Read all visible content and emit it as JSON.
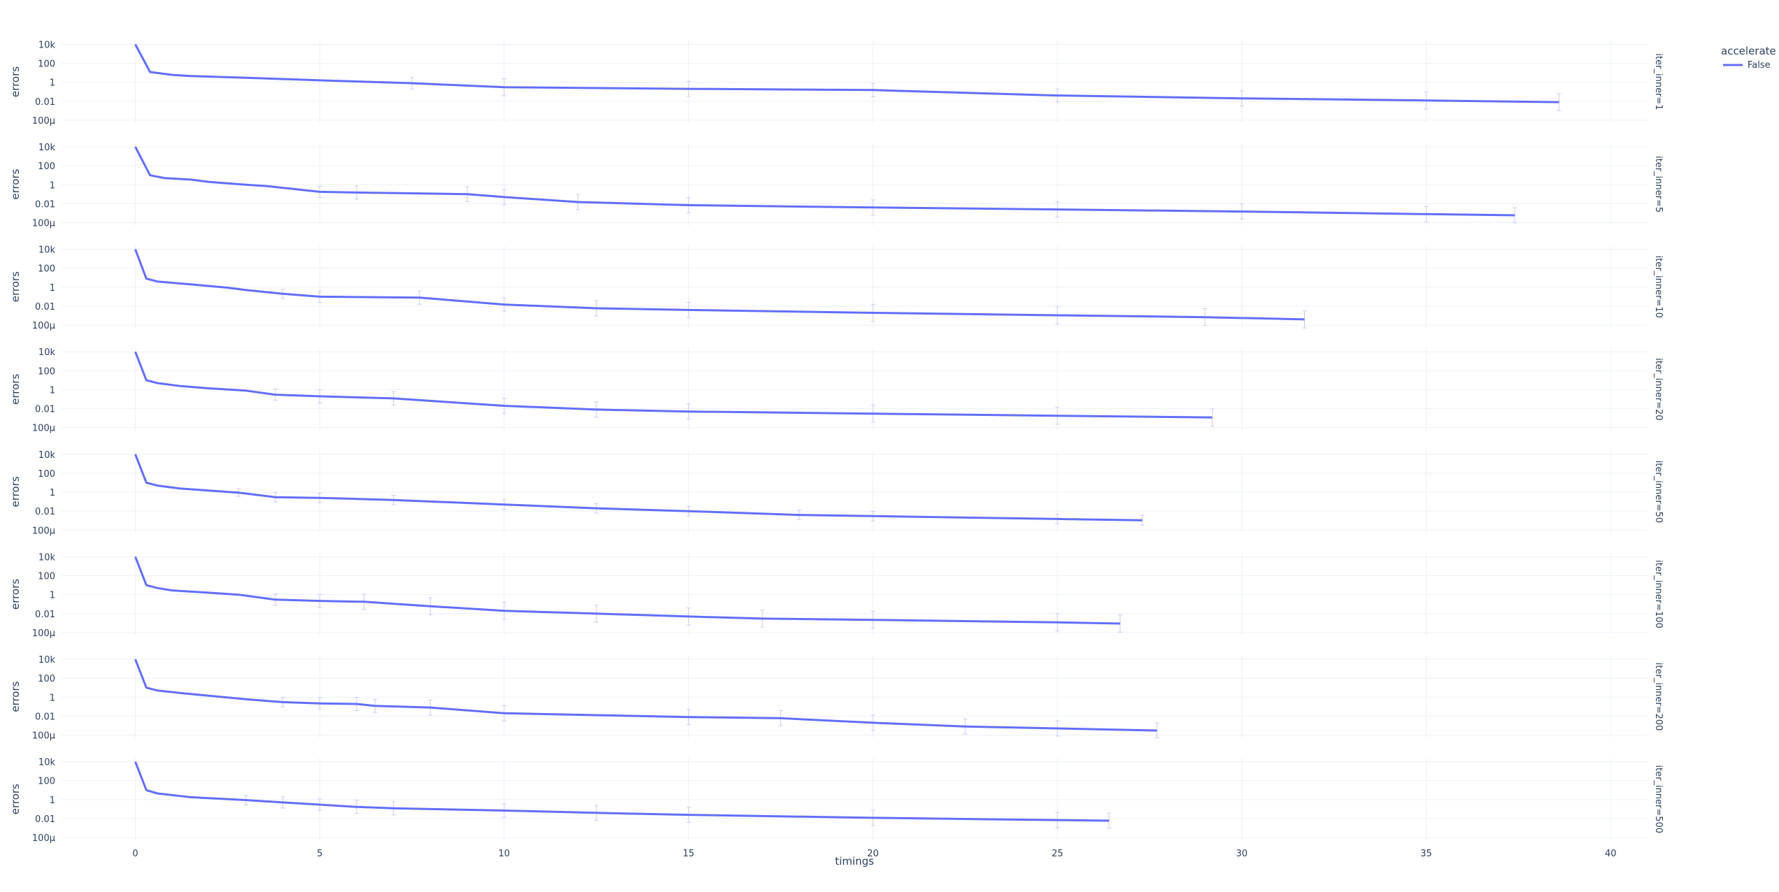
{
  "colors": {
    "line": "#636efa",
    "error_bar": "#c9ccf4",
    "grid": "#ebf0f8",
    "text": "#2a3f5f"
  },
  "chart_data": {
    "type": "line",
    "xlabel": "timings",
    "ylabel": "errors",
    "x_ticks": [
      "0",
      "5",
      "10",
      "15",
      "20",
      "25",
      "30",
      "35",
      "40"
    ],
    "x_tick_values": [
      0,
      5,
      10,
      15,
      20,
      25,
      30,
      35,
      40
    ],
    "xlim": [
      -2,
      41
    ],
    "y_scale": "log",
    "ylim": [
      5e-05,
      25000
    ],
    "y_ticks": [
      "10k",
      "100",
      "1",
      "0.01",
      "100μ"
    ],
    "y_tick_values": [
      10000,
      100,
      1,
      0.01,
      0.0001
    ],
    "grid": true,
    "legend": {
      "title": "accelerate",
      "placement": "top-right",
      "entries": [
        "False"
      ]
    },
    "facets": [
      {
        "label": "iter_inner=1",
        "series": [
          {
            "name": "False",
            "x": [
              0,
              0.4,
              1,
              1.5,
              3,
              5,
              7.5,
              10,
              15,
              20,
              25,
              30,
              35,
              38.6
            ],
            "y": [
              10000,
              12,
              6,
              4.5,
              3,
              1.6,
              0.8,
              0.3,
              0.2,
              0.15,
              0.04,
              0.02,
              0.012,
              0.008
            ],
            "err": [
              0,
              0,
              0,
              0,
              0,
              0,
              0.6,
              0.9,
              0.8,
              0.7,
              0.7,
              0.8,
              0.9,
              0.9
            ]
          }
        ]
      },
      {
        "label": "iter_inner=5",
        "series": [
          {
            "name": "False",
            "x": [
              0,
              0.4,
              0.8,
              1.5,
              2,
              3,
              3.6,
              5,
              6,
              9,
              10,
              12,
              15,
              20,
              25,
              30,
              35,
              37.4
            ],
            "y": [
              10000,
              10,
              5,
              3.5,
              2,
              1,
              0.7,
              0.18,
              0.15,
              0.1,
              0.05,
              0.015,
              0.007,
              0.004,
              0.0025,
              0.0015,
              0.0008,
              0.0006
            ],
            "err": [
              0,
              0,
              0,
              0,
              0,
              0,
              0,
              0.6,
              0.7,
              0.8,
              0.8,
              0.8,
              0.8,
              0.8,
              0.8,
              0.8,
              0.8,
              0.8
            ]
          }
        ]
      },
      {
        "label": "iter_inner=10",
        "series": [
          {
            "name": "False",
            "x": [
              0,
              0.3,
              0.6,
              1.5,
              2.5,
              3,
              4,
              5,
              7.7,
              10,
              12.5,
              15,
              20,
              25,
              29,
              31.7
            ],
            "y": [
              10000,
              8,
              4,
              2,
              0.9,
              0.5,
              0.2,
              0.1,
              0.08,
              0.015,
              0.006,
              0.004,
              0.002,
              0.0011,
              0.0007,
              0.0004
            ],
            "err": [
              0,
              0,
              0,
              0,
              0,
              0,
              0.5,
              0.6,
              0.7,
              0.7,
              0.8,
              0.8,
              0.9,
              0.9,
              0.9,
              0.9
            ]
          }
        ]
      },
      {
        "label": "iter_inner=20",
        "series": [
          {
            "name": "False",
            "x": [
              0,
              0.3,
              0.6,
              1.2,
              2,
              3,
              3.8,
              5,
              7,
              10,
              12.5,
              15,
              20,
              25,
              29.2
            ],
            "y": [
              10000,
              10,
              5,
              2.5,
              1.4,
              0.8,
              0.3,
              0.2,
              0.12,
              0.02,
              0.008,
              0.005,
              0.003,
              0.0018,
              0.0012
            ],
            "err": [
              0,
              0,
              0,
              0,
              0,
              0,
              0.6,
              0.7,
              0.7,
              0.8,
              0.8,
              0.8,
              0.9,
              0.9,
              0.9
            ]
          }
        ]
      },
      {
        "label": "iter_inner=50",
        "series": [
          {
            "name": "False",
            "x": [
              0,
              0.3,
              0.6,
              1.2,
              2,
              2.8,
              3.8,
              5,
              7,
              10,
              12.5,
              15,
              18,
              20,
              25,
              27.3
            ],
            "y": [
              10000,
              10,
              5,
              2.5,
              1.5,
              0.9,
              0.3,
              0.25,
              0.15,
              0.05,
              0.02,
              0.01,
              0.004,
              0.003,
              0.0015,
              0.0011
            ],
            "err": [
              0,
              0,
              0,
              0,
              0,
              0.4,
              0.5,
              0.5,
              0.5,
              0.5,
              0.5,
              0.5,
              0.5,
              0.5,
              0.5,
              0.5
            ]
          }
        ]
      },
      {
        "label": "iter_inner=100",
        "series": [
          {
            "name": "False",
            "x": [
              0,
              0.3,
              0.6,
              1,
              2,
              2.8,
              3.8,
              5,
              6.2,
              8,
              10,
              12.5,
              15,
              17,
              20,
              25,
              26.7
            ],
            "y": [
              10000,
              10,
              5,
              2.8,
              1.6,
              1,
              0.3,
              0.22,
              0.18,
              0.06,
              0.02,
              0.01,
              0.005,
              0.003,
              0.0022,
              0.0012,
              0.0009
            ],
            "err": [
              0,
              0,
              0,
              0,
              0,
              0,
              0.6,
              0.7,
              0.8,
              0.9,
              0.9,
              0.9,
              0.9,
              0.9,
              0.9,
              0.9,
              0.9
            ]
          }
        ]
      },
      {
        "label": "iter_inner=200",
        "series": [
          {
            "name": "False",
            "x": [
              0,
              0.3,
              0.6,
              1.2,
              2,
              3,
              4,
              5,
              6,
              6.5,
              8,
              10,
              15,
              17.5,
              20,
              22.5,
              25,
              27.7
            ],
            "y": [
              10000,
              10,
              5,
              2.8,
              1.4,
              0.6,
              0.3,
              0.22,
              0.19,
              0.12,
              0.08,
              0.02,
              0.008,
              0.006,
              0.002,
              0.0008,
              0.0005,
              0.0003
            ],
            "err": [
              0,
              0,
              0,
              0,
              0,
              0,
              0.5,
              0.6,
              0.7,
              0.7,
              0.8,
              0.8,
              0.8,
              0.8,
              0.8,
              0.8,
              0.8,
              0.8
            ]
          }
        ]
      },
      {
        "label": "iter_inner=500",
        "series": [
          {
            "name": "False",
            "x": [
              0,
              0.3,
              0.6,
              1.5,
              3,
              4,
              5,
              6,
              7,
              10,
              12.5,
              15,
              20,
              25,
              26.4
            ],
            "y": [
              10000,
              10,
              4.5,
              1.8,
              0.9,
              0.5,
              0.3,
              0.17,
              0.12,
              0.07,
              0.04,
              0.025,
              0.012,
              0.007,
              0.006
            ],
            "err": [
              0,
              0,
              0,
              0,
              0.5,
              0.6,
              0.6,
              0.7,
              0.7,
              0.7,
              0.8,
              0.8,
              0.8,
              0.8,
              0.8
            ]
          }
        ]
      }
    ]
  }
}
